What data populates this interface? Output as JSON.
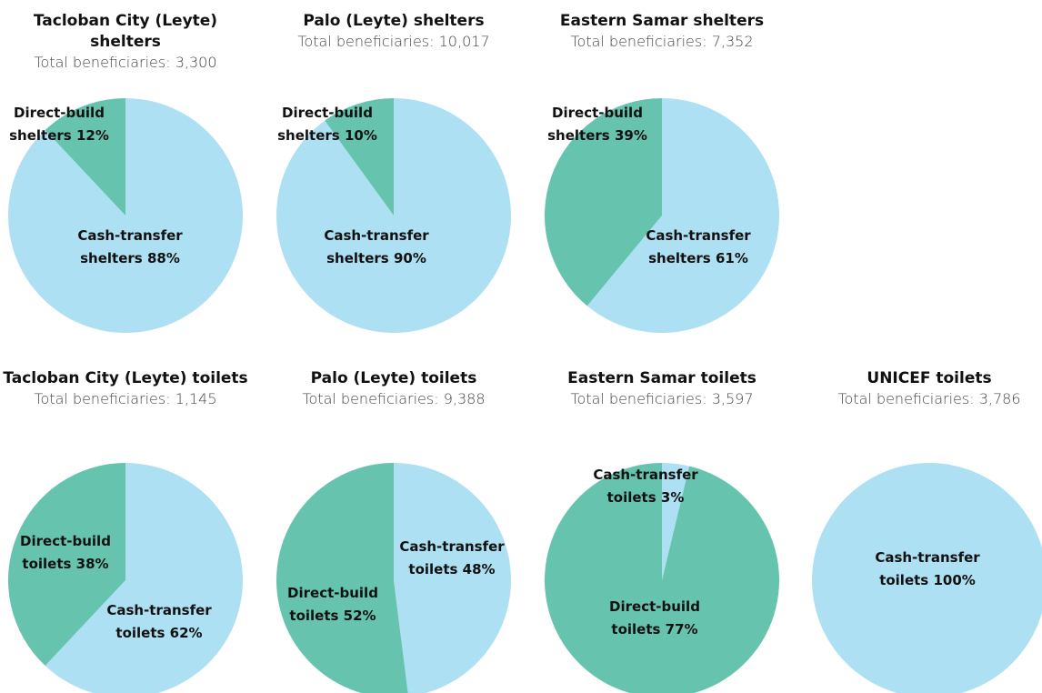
{
  "chart_data": [
    {
      "type": "pie",
      "title": "Tacloban City (Leyte) shelters",
      "subtitle": "Total beneficiaries: 3,300",
      "categories": [
        "Cash-transfer shelters",
        "Direct-build shelters"
      ],
      "values": [
        88,
        12
      ],
      "value_labels": [
        "88%",
        "12%"
      ],
      "colors": [
        "#aee0f3",
        "#66c4ae"
      ]
    },
    {
      "type": "pie",
      "title": "Palo (Leyte) shelters",
      "subtitle": "Total beneficiaries: 10,017",
      "categories": [
        "Cash-transfer shelters",
        "Direct-build shelters"
      ],
      "values": [
        90,
        10
      ],
      "value_labels": [
        "90%",
        "10%"
      ],
      "colors": [
        "#aee0f3",
        "#66c4ae"
      ]
    },
    {
      "type": "pie",
      "title": "Eastern Samar shelters",
      "subtitle": "Total beneficiaries: 7,352",
      "categories": [
        "Cash-transfer shelters",
        "Direct-build shelters"
      ],
      "values": [
        61,
        39
      ],
      "value_labels": [
        "61%",
        "39%"
      ],
      "colors": [
        "#aee0f3",
        "#66c4ae"
      ]
    },
    {
      "type": "pie",
      "title": "Tacloban City (Leyte) toilets",
      "subtitle": "Total beneficiaries: 1,145",
      "categories": [
        "Cash-transfer toilets",
        "Direct-build toilets"
      ],
      "values": [
        62,
        38
      ],
      "value_labels": [
        "62%",
        "38%"
      ],
      "colors": [
        "#aee0f3",
        "#66c4ae"
      ]
    },
    {
      "type": "pie",
      "title": "Palo (Leyte) toilets",
      "subtitle": "Total beneficiaries: 9,388",
      "categories": [
        "Cash-transfer toilets",
        "Direct-build toilets"
      ],
      "values": [
        48,
        52
      ],
      "value_labels": [
        "48%",
        "52%"
      ],
      "colors": [
        "#aee0f3",
        "#66c4ae"
      ]
    },
    {
      "type": "pie",
      "title": "Eastern Samar toilets",
      "subtitle": "Total beneficiaries: 3,597",
      "categories": [
        "Cash-transfer toilets",
        "Direct-build toilets"
      ],
      "values": [
        3,
        77
      ],
      "value_labels": [
        "3%",
        "77%"
      ],
      "colors": [
        "#aee0f3",
        "#66c4ae"
      ]
    },
    {
      "type": "pie",
      "title": "UNICEF toilets",
      "subtitle": "Total beneficiaries: 3,786",
      "categories": [
        "Cash-transfer toilets"
      ],
      "values": [
        100
      ],
      "value_labels": [
        "100%"
      ],
      "colors": [
        "#aee0f3"
      ]
    }
  ]
}
